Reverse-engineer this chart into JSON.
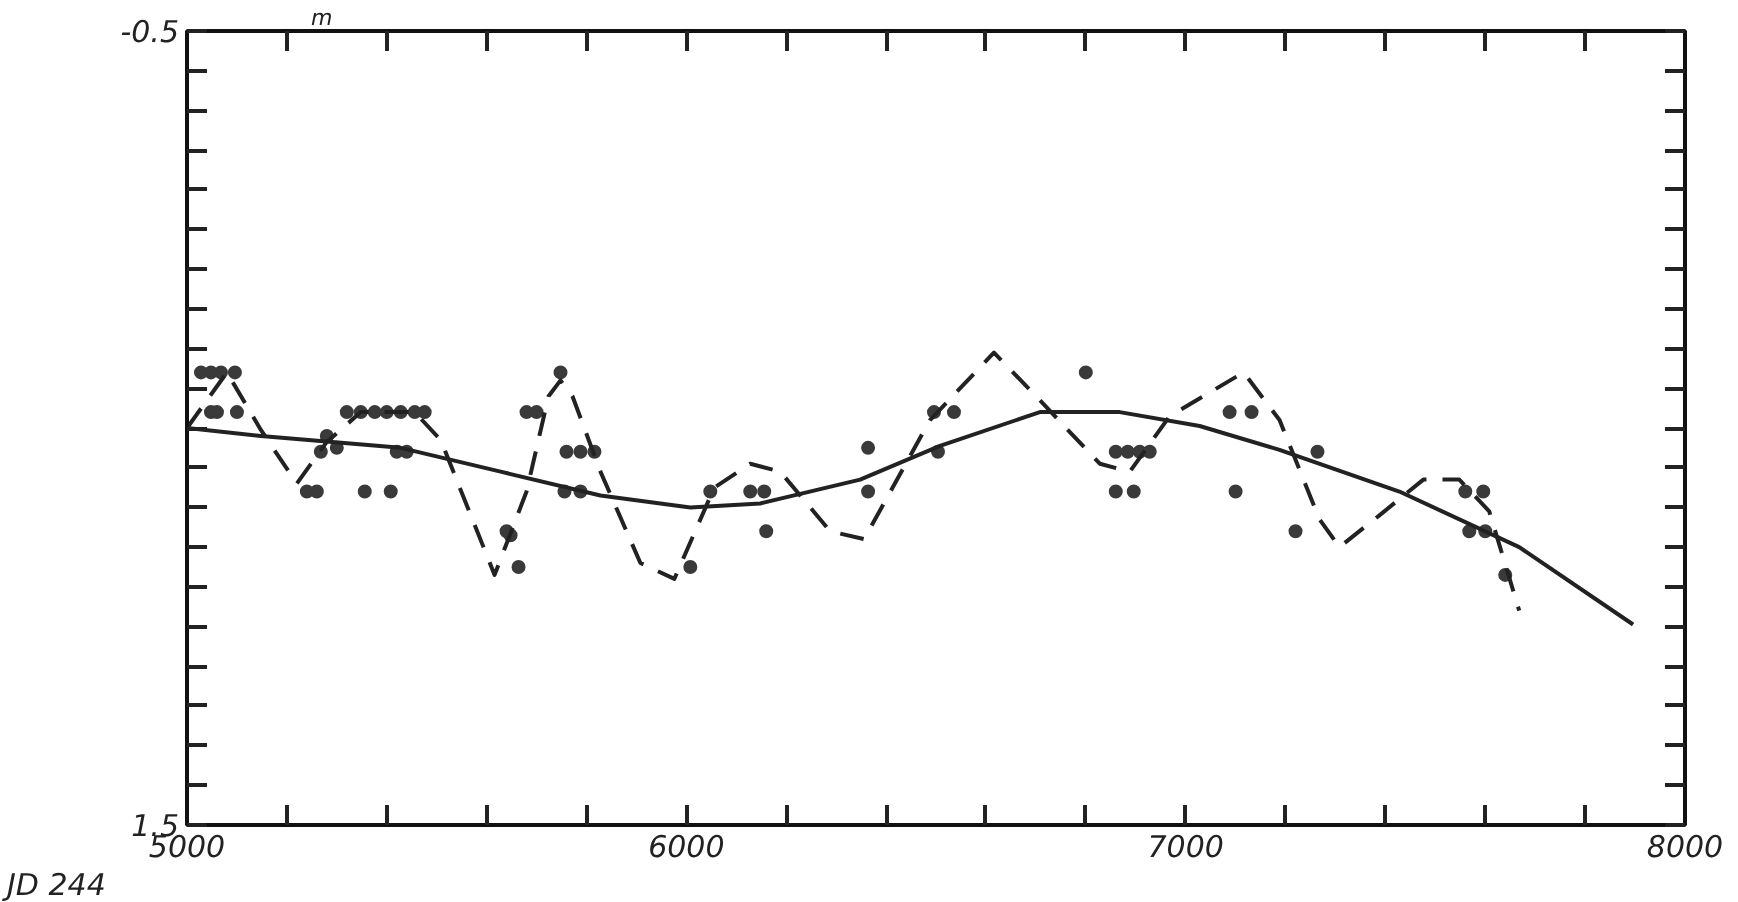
{
  "chart_data": {
    "type": "scatter",
    "xlabel": "JD 244",
    "ylabel": "m",
    "xlim": [
      5000,
      8000
    ],
    "xticks": [
      5000,
      {
        "value": 5200,
        "label": null
      },
      {
        "value": 5400,
        "label": null
      },
      {
        "value": 5600,
        "label": null
      },
      {
        "value": 5800,
        "label": null
      },
      6000,
      {
        "value": 6200,
        "label": null
      },
      {
        "value": 6400,
        "label": null
      },
      {
        "value": 6600,
        "label": null
      },
      {
        "value": 6800,
        "label": null
      },
      7000,
      {
        "value": 7200,
        "label": null
      },
      {
        "value": 7400,
        "label": null
      },
      {
        "value": 7600,
        "label": null
      },
      {
        "value": 7800,
        "label": null
      },
      8000
    ],
    "ylim": [
      1.5,
      -0.5
    ],
    "yticks": [
      -0.5,
      {
        "value": -0.4,
        "label": null
      },
      {
        "value": -0.3,
        "label": null
      },
      {
        "value": -0.2,
        "label": null
      },
      {
        "value": -0.1,
        "label": null
      },
      {
        "value": 0.0,
        "label": null
      },
      {
        "value": 0.1,
        "label": null
      },
      {
        "value": 0.2,
        "label": null
      },
      {
        "value": 0.3,
        "label": null
      },
      {
        "value": 0.4,
        "label": null
      },
      {
        "value": 0.5,
        "label": null
      },
      {
        "value": 0.6,
        "label": null
      },
      {
        "value": 0.7,
        "label": null
      },
      {
        "value": 0.8,
        "label": null
      },
      {
        "value": 0.9,
        "label": null
      },
      {
        "value": 1.0,
        "label": null
      },
      {
        "value": 1.1,
        "label": null
      },
      {
        "value": 1.2,
        "label": null
      },
      {
        "value": 1.3,
        "label": null
      },
      {
        "value": 1.4,
        "label": null
      },
      1.5
    ],
    "grid": false,
    "series": [
      {
        "color": "#3a3a3a",
        "marker": "circle",
        "x": [
          5028,
          5048,
          5068,
          5096,
          5048,
          5060,
          5100,
          5320,
          5348,
          5376,
          5400,
          5428,
          5456,
          5476,
          5280,
          5268,
          5300,
          5420,
          5440,
          5240,
          5260,
          5356,
          5408,
          5748,
          5680,
          5700,
          5760,
          5788,
          5816,
          5756,
          5788,
          5640,
          5648,
          5664,
          6008,
          6048,
          6128,
          6156,
          6160,
          6364,
          6364,
          6496,
          6536,
          6504,
          6800,
          6860,
          6884,
          6908,
          6928,
          6860,
          6896,
          7088,
          7132,
          7100,
          7264,
          7220,
          7560,
          7596,
          7568,
          7600,
          7640
        ],
        "values": [
          0.36,
          0.36,
          0.36,
          0.36,
          0.46,
          0.46,
          0.46,
          0.46,
          0.46,
          0.46,
          0.46,
          0.46,
          0.46,
          0.46,
          0.52,
          0.56,
          0.55,
          0.56,
          0.56,
          0.66,
          0.66,
          0.66,
          0.66,
          0.36,
          0.46,
          0.46,
          0.56,
          0.56,
          0.56,
          0.66,
          0.66,
          0.76,
          0.77,
          0.85,
          0.85,
          0.66,
          0.66,
          0.66,
          0.76,
          0.55,
          0.66,
          0.46,
          0.46,
          0.56,
          0.36,
          0.56,
          0.56,
          0.56,
          0.56,
          0.66,
          0.66,
          0.46,
          0.46,
          0.66,
          0.56,
          0.76,
          0.66,
          0.66,
          0.76,
          0.76,
          0.87
        ]
      },
      {
        "type": "line",
        "color": "#222222",
        "line_style": "solid",
        "x": [
          5000,
          5148,
          5428,
          5628,
          5828,
          6008,
          6148,
          6348,
          6508,
          6708,
          6868,
          7028,
          7188,
          7428,
          7668,
          7896
        ],
        "values": [
          0.5,
          0.52,
          0.55,
          0.61,
          0.67,
          0.7,
          0.69,
          0.63,
          0.545,
          0.46,
          0.46,
          0.495,
          0.555,
          0.66,
          0.8,
          0.995
        ]
      },
      {
        "type": "line",
        "color": "#222222",
        "line_style": "dashed",
        "x": [
          5000,
          5080,
          5148,
          5220,
          5280,
          5348,
          5456,
          5508,
          5616,
          5680,
          5724,
          5748,
          5772,
          5828,
          5908,
          5976,
          6056,
          6128,
          6188,
          6288,
          6356,
          6488,
          6616,
          6708,
          6828,
          6888,
          6968,
          7116,
          7188,
          7268,
          7308,
          7388,
          7476,
          7548,
          7608,
          7668
        ],
        "values": [
          0.5,
          0.36,
          0.505,
          0.64,
          0.535,
          0.46,
          0.46,
          0.53,
          0.87,
          0.66,
          0.42,
          0.38,
          0.42,
          0.61,
          0.84,
          0.88,
          0.65,
          0.59,
          0.61,
          0.76,
          0.78,
          0.48,
          0.31,
          0.43,
          0.59,
          0.61,
          0.47,
          0.36,
          0.48,
          0.73,
          0.8,
          0.72,
          0.63,
          0.63,
          0.71,
          0.96
        ]
      }
    ]
  }
}
